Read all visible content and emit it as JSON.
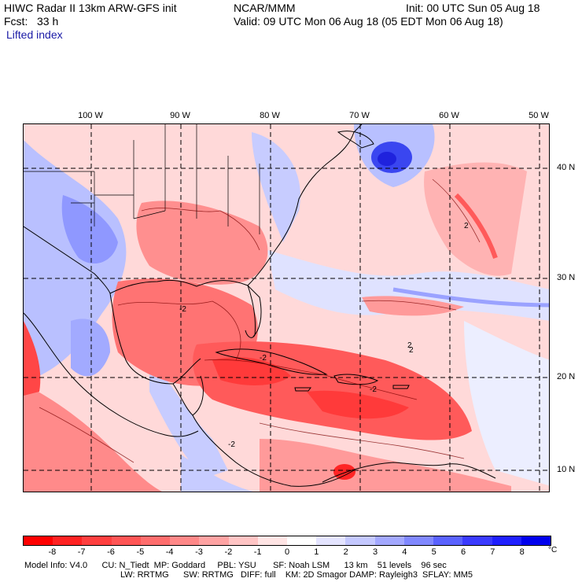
{
  "header": {
    "left_line1": "HIWC Radar II 13km ARW-GFS init",
    "left_line2": "Fcst:   33 h",
    "field": "Lifted index",
    "center_line1": "NCAR/MMM",
    "right_line1": "Init: 00 UTC Sun 05 Aug 18",
    "right_line2": "Valid: 09 UTC Mon 06 Aug 18 (05 EDT Mon 06 Aug 18)"
  },
  "axes": {
    "lon_labels": [
      {
        "text": "100 W"
      },
      {
        "text": "90 W"
      },
      {
        "text": "80 W"
      },
      {
        "text": "70 W"
      },
      {
        "text": "60 W"
      },
      {
        "text": "50 W"
      }
    ],
    "lat_labels": [
      {
        "text": "40 N"
      },
      {
        "text": "30 N"
      },
      {
        "text": "20 N"
      },
      {
        "text": "10 N"
      }
    ]
  },
  "colorbar": {
    "unit": "°C",
    "labels": [
      "-8",
      "-7",
      "-6",
      "-5",
      "-4",
      "-3",
      "-2",
      "-1",
      "0",
      "1",
      "2",
      "3",
      "4",
      "5",
      "6",
      "7",
      "8"
    ],
    "colors": [
      "#ff0000",
      "#ff2222",
      "#ff3f3f",
      "#ff5555",
      "#ff6d6d",
      "#ff8888",
      "#ffa3a3",
      "#ffc4c4",
      "#ffe4e4",
      "#ffffff",
      "#e4e4ff",
      "#c4c8ff",
      "#a3a8ff",
      "#8088ff",
      "#5a62ff",
      "#3a3aff",
      "#1f1fff",
      "#0000ee"
    ]
  },
  "map": {
    "colors": {
      "land_outline": "#000000",
      "grid": "#000000",
      "strong_red": "#ff3a3a",
      "mid_red": "#ff7070",
      "light_red": "#ffaaaa",
      "pale_red": "#ffd6d6",
      "pale_blue": "#d6daff",
      "light_blue": "#a8b0ff",
      "mid_blue": "#7a84ff",
      "dark_blue": "#2030ee"
    },
    "contour_labels": [
      "-2",
      "-2",
      "2",
      "2",
      "2",
      "-2",
      "-2"
    ]
  },
  "footer": {
    "line1": "Model Info: V4.0      CU: N_Tiedt  MP: Goddard     PBL: YSU       SF: Noah LSM      13 km    51 levels    96 sec",
    "line2": "LW: RRTMG      SW: RRTMG   DIFF: full    KM: 2D Smagor DAMP: Rayleigh3  SFLAY: MM5"
  }
}
